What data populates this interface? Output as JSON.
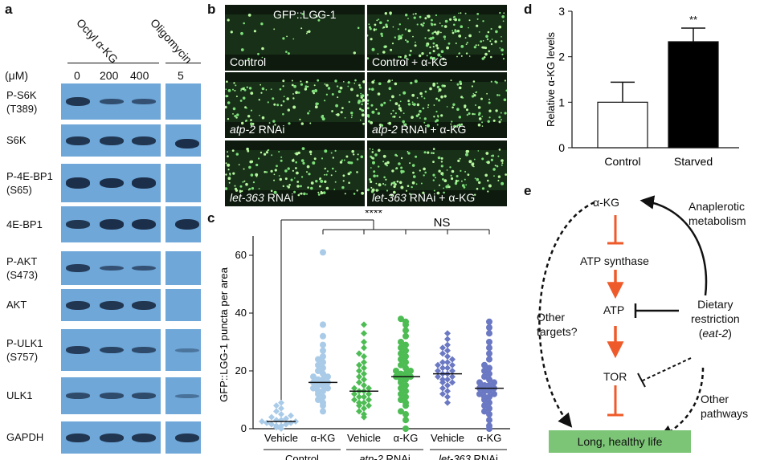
{
  "panels": {
    "a": "a",
    "b": "b",
    "c": "c",
    "d": "d",
    "e": "e"
  },
  "panel_a": {
    "treatment_octyl": "Octyl α-KG",
    "treatment_oligo": "Oligomycin",
    "unit": "(μM)",
    "doses": [
      "0",
      "200",
      "400",
      "5"
    ],
    "rows": [
      {
        "l1": "P-S6K",
        "l2": "(T389)"
      },
      {
        "l1": "S6K",
        "l2": ""
      },
      {
        "l1": "P-4E-BP1",
        "l2": "(S65)"
      },
      {
        "l1": "4E-BP1",
        "l2": ""
      },
      {
        "l1": "P-AKT",
        "l2": "(S473)"
      },
      {
        "l1": "AKT",
        "l2": ""
      },
      {
        "l1": "P-ULK1",
        "l2": "(S757)"
      },
      {
        "l1": "ULK1",
        "l2": ""
      },
      {
        "l1": "GAPDH",
        "l2": ""
      }
    ]
  },
  "panel_b": {
    "reporter": "GFP::LGG-1",
    "captions": [
      [
        "",
        "Control"
      ],
      [
        "",
        "Control + α-KG"
      ],
      [
        "atp-2",
        " RNAi"
      ],
      [
        "atp-2",
        " RNAi + α-KG"
      ],
      [
        "let-363",
        " RNAi"
      ],
      [
        "let-363",
        " RNAi + α-KG"
      ]
    ]
  },
  "chart_data": [
    {
      "type": "scatter",
      "panel": "c",
      "ylabel": "GFP::LGG-1 puncta per area",
      "ylim": [
        0,
        65
      ],
      "yticks": [
        0,
        20,
        40,
        60
      ],
      "categories": [
        "Vehicle",
        "α-KG",
        "Vehicle",
        "α-KG",
        "Vehicle",
        "α-KG"
      ],
      "groups": [
        {
          "name": "Control",
          "italic": "",
          "suffix": "Control"
        },
        {
          "name": "atp-2 RNAi",
          "italic": "atp-2",
          "suffix": " RNAi"
        },
        {
          "name": "let-363 RNAi",
          "italic": "let-363",
          "suffix": " RNAi"
        }
      ],
      "means": [
        2.5,
        16,
        13,
        18,
        19,
        14
      ],
      "series": [
        {
          "color": "#a9cbe8",
          "marker": "diamond",
          "values": [
            0,
            0.5,
            1,
            1,
            1.5,
            1.5,
            2,
            2,
            2.5,
            2.5,
            3,
            3,
            3.5,
            4,
            4.5,
            5,
            6,
            7,
            8,
            9
          ]
        },
        {
          "color": "#a9cbe8",
          "marker": "circle",
          "values": [
            6,
            8,
            9,
            10,
            11,
            12,
            13,
            13,
            14,
            14,
            15,
            15,
            16,
            16,
            17,
            17,
            18,
            18,
            19,
            20,
            21,
            22,
            23,
            24,
            25,
            27,
            29,
            32,
            36,
            61
          ]
        },
        {
          "color": "#4cbc53",
          "marker": "diamond",
          "values": [
            4,
            5,
            6,
            7,
            8,
            8,
            9,
            9,
            10,
            10,
            11,
            11,
            12,
            12,
            13,
            13,
            14,
            14,
            15,
            16,
            17,
            18,
            19,
            20,
            21,
            22,
            23,
            25,
            26,
            28,
            30,
            33,
            36
          ]
        },
        {
          "color": "#4cbc53",
          "marker": "circle",
          "values": [
            0,
            3,
            5,
            6,
            8,
            9,
            10,
            11,
            12,
            13,
            14,
            15,
            16,
            17,
            17,
            18,
            18,
            19,
            19,
            20,
            20,
            21,
            22,
            23,
            24,
            25,
            26,
            27,
            28,
            29,
            30,
            32,
            34,
            36,
            37,
            38
          ]
        },
        {
          "color": "#6b78c3",
          "marker": "diamond",
          "values": [
            9,
            11,
            12,
            13,
            14,
            15,
            16,
            16,
            17,
            17,
            18,
            18,
            19,
            19,
            20,
            20,
            21,
            21,
            22,
            22,
            23,
            23,
            24,
            25,
            26,
            27,
            28,
            29,
            31,
            33
          ]
        },
        {
          "color": "#6b78c3",
          "marker": "circle",
          "values": [
            0,
            1,
            3,
            5,
            6,
            7,
            8,
            9,
            10,
            11,
            11,
            12,
            12,
            13,
            13,
            14,
            14,
            15,
            15,
            16,
            16,
            17,
            18,
            19,
            20,
            21,
            22,
            24,
            26,
            28,
            30,
            33,
            35,
            37
          ]
        }
      ],
      "annotations": [
        "****",
        "NS"
      ]
    },
    {
      "type": "bar",
      "panel": "d",
      "categories": [
        "Control",
        "Starved"
      ],
      "values": [
        1.0,
        2.33
      ],
      "errors": [
        0.44,
        0.3
      ],
      "colors": [
        "#ffffff",
        "#000000"
      ],
      "ylabel": "Relative α-KG levels",
      "ylim": [
        0,
        3
      ],
      "yticks": [
        0,
        1,
        2,
        3
      ],
      "annotation": "**"
    }
  ],
  "panel_e": {
    "akg": "α-KG",
    "atp_synthase": "ATP synthase",
    "atp": "ATP",
    "tor": "TOR",
    "outcome": "Long, healthy life",
    "anaplerotic_1": "Anaplerotic",
    "anaplerotic_2": "metabolism",
    "dr_1": "Dietary",
    "dr_2": "restriction",
    "dr_3a": "(",
    "dr_3b": "eat-2",
    "dr_3c": ")",
    "other_targets_1": "Other",
    "other_targets_2": "targets?",
    "other_pathways_1": "Other",
    "other_pathways_2": "pathways",
    "arrow_color": "#ef5a2a",
    "box_color": "#7cc576"
  }
}
